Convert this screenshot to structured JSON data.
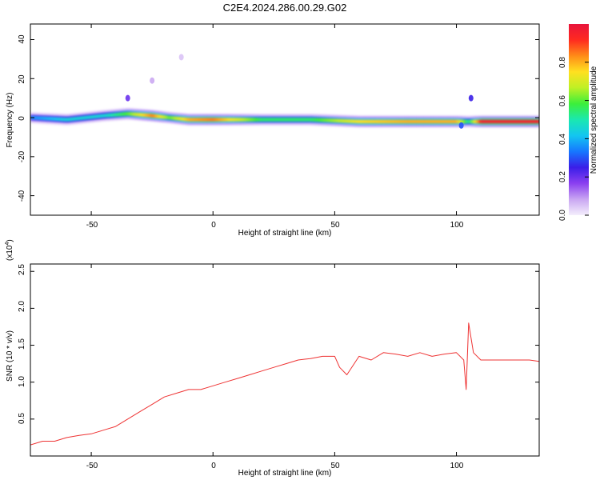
{
  "title": "C2E4.2024.286.00.29.G02",
  "spectrogram": {
    "xlabel": "Height of straight line (km)",
    "ylabel": "Frequency (Hz)",
    "xlim": [
      -75,
      134
    ],
    "ylim": [
      -50,
      48
    ],
    "xticks": [
      "-50",
      "0",
      "50",
      "100"
    ],
    "yticks": [
      "40",
      "20",
      "0",
      "-20",
      "-40"
    ]
  },
  "colorbar": {
    "label": "Normalized spectral amplitude",
    "ticks": [
      "0.0",
      "0.2",
      "0.4",
      "0.6",
      "0.8"
    ],
    "colors": [
      "#f4eefc",
      "#c9a6f2",
      "#8a3ff0",
      "#3a1ee8",
      "#1677ff",
      "#13c6f0",
      "#1ae8b0",
      "#3cef3a",
      "#bff025",
      "#ffe020",
      "#ff8c18",
      "#ff2a20",
      "#e8143c"
    ]
  },
  "chart_data": [
    {
      "type": "heatmap",
      "title": "C2E4.2024.286.00.29.G02",
      "xlabel": "Height of straight line (km)",
      "ylabel": "Frequency (Hz)",
      "xlim": [
        -75,
        134
      ],
      "ylim": [
        -50,
        48
      ],
      "colorbar_label": "Normalized spectral amplitude",
      "colorbar_range": [
        0.0,
        1.0
      ],
      "ridge": {
        "x": [
          -75,
          -60,
          -45,
          -35,
          -25,
          -18,
          -10,
          0,
          20,
          40,
          60,
          80,
          100,
          105,
          110,
          134
        ],
        "frequency": [
          0,
          -1,
          1,
          2,
          1,
          0,
          -1,
          -1,
          -1,
          -1,
          -2,
          -2,
          -2,
          -2,
          -2,
          -2
        ],
        "amplitude": [
          0.35,
          0.45,
          0.45,
          0.6,
          0.85,
          0.6,
          0.8,
          0.85,
          0.55,
          0.55,
          0.75,
          0.8,
          0.8,
          0.5,
          0.95,
          0.95
        ]
      },
      "features": [
        {
          "x": -35,
          "frequency": 10,
          "amplitude": 0.2
        },
        {
          "x": -25,
          "frequency": 19,
          "amplitude": 0.08
        },
        {
          "x": -13,
          "frequency": 31,
          "amplitude": 0.05
        },
        {
          "x": 102,
          "frequency": -4,
          "amplitude": 0.3
        },
        {
          "x": 106,
          "frequency": 10,
          "amplitude": 0.25
        }
      ]
    },
    {
      "type": "line",
      "xlabel": "Height of straight line (km)",
      "ylabel": "SNR (10 * v/v)",
      "y_multiplier": "(x10^4)",
      "xlim": [
        -75,
        134
      ],
      "ylim": [
        0,
        2.6
      ],
      "grid": false,
      "series": [
        {
          "color": "#ee3333",
          "x": [
            -75,
            -70,
            -65,
            -60,
            -55,
            -50,
            -45,
            -40,
            -35,
            -30,
            -25,
            -20,
            -15,
            -10,
            -5,
            0,
            5,
            10,
            15,
            20,
            25,
            30,
            35,
            40,
            45,
            48,
            50,
            52,
            55,
            60,
            65,
            70,
            75,
            80,
            85,
            90,
            95,
            100,
            103,
            104,
            105,
            107,
            110,
            115,
            120,
            125,
            130,
            134
          ],
          "y": [
            0.15,
            0.2,
            0.2,
            0.25,
            0.28,
            0.3,
            0.35,
            0.4,
            0.5,
            0.6,
            0.7,
            0.8,
            0.85,
            0.9,
            0.9,
            0.95,
            1.0,
            1.05,
            1.1,
            1.15,
            1.2,
            1.25,
            1.3,
            1.32,
            1.35,
            1.35,
            1.35,
            1.2,
            1.1,
            1.35,
            1.3,
            1.4,
            1.38,
            1.35,
            1.4,
            1.35,
            1.38,
            1.4,
            1.3,
            0.9,
            1.8,
            1.4,
            1.3,
            1.3,
            1.3,
            1.3,
            1.3,
            1.28
          ]
        }
      ]
    }
  ],
  "snr": {
    "xlabel": "Height of straight line (km)",
    "ylabel": "SNR (10 * v/v)",
    "multiplier": "(x10",
    "multiplier_exp": "4",
    "multiplier_close": ")",
    "xticks": [
      "-50",
      "0",
      "50",
      "100"
    ],
    "yticks": [
      "2.5",
      "2.0",
      "1.5",
      "1.0",
      "0.5"
    ]
  }
}
